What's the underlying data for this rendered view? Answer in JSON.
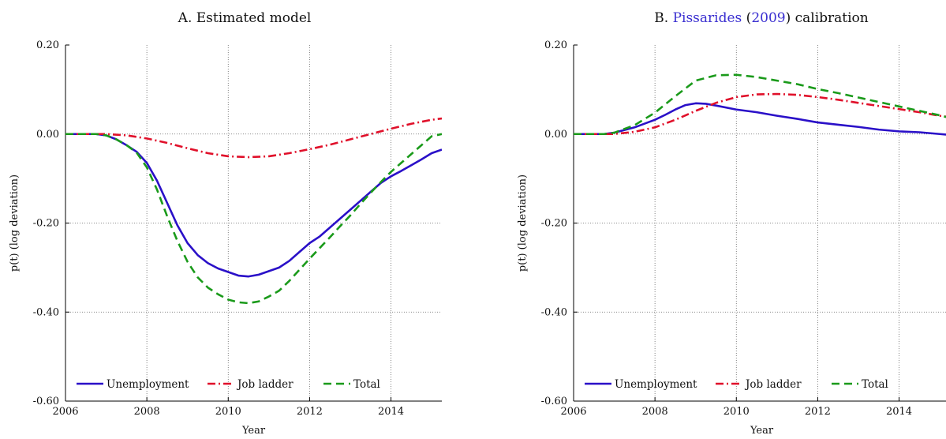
{
  "chart_data": [
    {
      "type": "line",
      "title": "A. Estimated model",
      "xlabel": "Year",
      "ylabel": "p(t) (log deviation)",
      "xlim": [
        2006,
        2015.25
      ],
      "ylim": [
        -0.6,
        0.2
      ],
      "xticks": [
        2006,
        2008,
        2010,
        2012,
        2014
      ],
      "xtick_labels": [
        "2006",
        "2008",
        "2010",
        "2012",
        "2014"
      ],
      "yticks": [
        -0.6,
        -0.4,
        -0.2,
        0.0,
        0.2
      ],
      "ytick_labels": [
        "-0.60",
        "-0.40",
        "-0.20",
        "0.00",
        "0.20"
      ],
      "grid": true,
      "legend_position": "bottom",
      "series": [
        {
          "name": "Unemployment",
          "color": "#2a10c8",
          "style": "solid",
          "x": [
            2006,
            2006.5,
            2006.75,
            2007,
            2007.25,
            2007.5,
            2007.75,
            2008,
            2008.25,
            2008.5,
            2008.75,
            2009,
            2009.25,
            2009.5,
            2009.75,
            2010,
            2010.25,
            2010.5,
            2010.75,
            2011,
            2011.25,
            2011.5,
            2011.75,
            2012,
            2012.25,
            2012.5,
            2012.75,
            2013,
            2013.25,
            2013.5,
            2013.75,
            2014,
            2014.25,
            2014.5,
            2014.75,
            2015,
            2015.25
          ],
          "values": [
            0.0,
            0.0,
            0.0,
            -0.003,
            -0.012,
            -0.025,
            -0.04,
            -0.065,
            -0.105,
            -0.155,
            -0.205,
            -0.245,
            -0.272,
            -0.29,
            -0.302,
            -0.31,
            -0.318,
            -0.32,
            -0.316,
            -0.308,
            -0.3,
            -0.285,
            -0.265,
            -0.245,
            -0.23,
            -0.21,
            -0.19,
            -0.17,
            -0.15,
            -0.13,
            -0.11,
            -0.095,
            -0.083,
            -0.07,
            -0.057,
            -0.043,
            -0.035
          ]
        },
        {
          "name": "Job ladder",
          "color": "#e0102a",
          "style": "dashdot",
          "x": [
            2006,
            2007,
            2007.5,
            2008,
            2008.5,
            2009,
            2009.5,
            2010,
            2010.5,
            2011,
            2011.5,
            2012,
            2012.5,
            2013,
            2013.5,
            2014,
            2014.5,
            2015,
            2015.25
          ],
          "values": [
            0.0,
            0.0,
            -0.003,
            -0.01,
            -0.02,
            -0.032,
            -0.043,
            -0.05,
            -0.052,
            -0.05,
            -0.043,
            -0.034,
            -0.024,
            -0.012,
            0.0,
            0.012,
            0.023,
            0.032,
            0.035
          ]
        },
        {
          "name": "Total",
          "color": "#1a9a1a",
          "style": "dashed",
          "x": [
            2006,
            2006.5,
            2006.75,
            2007,
            2007.25,
            2007.5,
            2007.75,
            2008,
            2008.25,
            2008.5,
            2008.75,
            2009,
            2009.25,
            2009.5,
            2009.75,
            2010,
            2010.25,
            2010.5,
            2010.75,
            2011,
            2011.25,
            2011.5,
            2011.75,
            2012,
            2012.25,
            2012.5,
            2012.75,
            2013,
            2013.25,
            2013.5,
            2013.75,
            2014,
            2014.25,
            2014.5,
            2014.75,
            2015,
            2015.25
          ],
          "values": [
            0.0,
            0.0,
            0.0,
            -0.003,
            -0.012,
            -0.025,
            -0.042,
            -0.075,
            -0.125,
            -0.185,
            -0.24,
            -0.287,
            -0.322,
            -0.345,
            -0.36,
            -0.372,
            -0.378,
            -0.38,
            -0.376,
            -0.365,
            -0.352,
            -0.33,
            -0.305,
            -0.28,
            -0.256,
            -0.232,
            -0.207,
            -0.183,
            -0.157,
            -0.132,
            -0.108,
            -0.085,
            -0.065,
            -0.045,
            -0.025,
            -0.005,
            0.0
          ]
        }
      ]
    },
    {
      "type": "line",
      "title": "B. Pissarides (2009) calibration",
      "title_parts": [
        "B. ",
        "Pissarides",
        " (",
        "2009",
        ") calibration"
      ],
      "xlabel": "Year",
      "ylabel": "p(t) (log deviation)",
      "xlim": [
        2006,
        2015.25
      ],
      "ylim": [
        -0.6,
        0.2
      ],
      "xticks": [
        2006,
        2008,
        2010,
        2012,
        2014
      ],
      "xtick_labels": [
        "2006",
        "2008",
        "2010",
        "2012",
        "2014"
      ],
      "yticks": [
        -0.6,
        -0.4,
        -0.2,
        0.0,
        0.2
      ],
      "ytick_labels": [
        "-0.60",
        "-0.40",
        "-0.20",
        "0.00",
        "0.20"
      ],
      "grid": true,
      "legend_position": "bottom",
      "series": [
        {
          "name": "Unemployment",
          "color": "#2a10c8",
          "style": "solid",
          "x": [
            2006,
            2006.75,
            2007,
            2007.5,
            2008,
            2008.25,
            2008.5,
            2008.75,
            2009,
            2009.25,
            2009.5,
            2010,
            2010.5,
            2011,
            2011.5,
            2012,
            2012.5,
            2013,
            2013.5,
            2014,
            2014.5,
            2015,
            2015.25
          ],
          "values": [
            0.0,
            0.0,
            0.003,
            0.015,
            0.032,
            0.043,
            0.055,
            0.065,
            0.069,
            0.068,
            0.064,
            0.055,
            0.049,
            0.041,
            0.034,
            0.026,
            0.021,
            0.016,
            0.01,
            0.006,
            0.004,
            0.0,
            -0.002
          ]
        },
        {
          "name": "Job ladder",
          "color": "#e0102a",
          "style": "dashdot",
          "x": [
            2006,
            2007,
            2007.5,
            2008,
            2008.5,
            2009,
            2009.5,
            2010,
            2010.5,
            2011,
            2011.5,
            2012,
            2012.5,
            2013,
            2013.5,
            2014,
            2014.5,
            2015,
            2015.25
          ],
          "values": [
            0.0,
            0.0,
            0.005,
            0.015,
            0.032,
            0.052,
            0.07,
            0.083,
            0.089,
            0.09,
            0.088,
            0.083,
            0.077,
            0.07,
            0.063,
            0.056,
            0.049,
            0.041,
            0.038
          ]
        },
        {
          "name": "Total",
          "color": "#1a9a1a",
          "style": "dashed",
          "x": [
            2006,
            2006.75,
            2007,
            2007.5,
            2008,
            2008.5,
            2009,
            2009.5,
            2010,
            2010.5,
            2011,
            2011.5,
            2012,
            2012.5,
            2013,
            2013.5,
            2014,
            2014.5,
            2015,
            2015.25
          ],
          "values": [
            0.0,
            0.0,
            0.003,
            0.02,
            0.048,
            0.085,
            0.12,
            0.132,
            0.133,
            0.128,
            0.12,
            0.112,
            0.101,
            0.092,
            0.082,
            0.072,
            0.062,
            0.052,
            0.042,
            0.036
          ]
        }
      ]
    }
  ]
}
